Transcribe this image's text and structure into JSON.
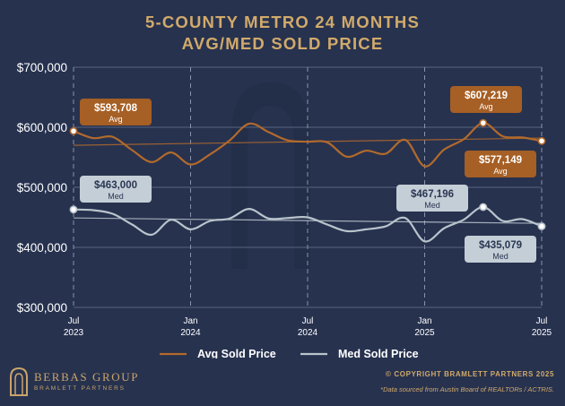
{
  "title_line1": "5-COUNTY METRO 24 MONTHS",
  "title_line2": "AVG/MED SOLD PRICE",
  "brand": {
    "name": "BERBAS GROUP",
    "sub": "BRAMLETT PARTNERS"
  },
  "copyright": "© COPYRIGHT BRAMLETT PARTNERS 2025",
  "source": "*Data sourced from Austin Board of REALTORs / ACTRIS.",
  "colors": {
    "avg": "#b26a2c",
    "med": "#b9c4cc",
    "gold": "#d1aa6a",
    "grid": "#5a6482"
  },
  "chart_data": {
    "type": "line",
    "title": "5-County Metro 24 Months Avg/Med Sold Price",
    "x_ticks": [
      {
        "index": 0,
        "line1": "Jul",
        "line2": "2023"
      },
      {
        "index": 6,
        "line1": "Jan",
        "line2": "2024"
      },
      {
        "index": 12,
        "line1": "Jul",
        "line2": "2024"
      },
      {
        "index": 18,
        "line1": "Jan",
        "line2": "2025"
      },
      {
        "index": 24,
        "line1": "Jul",
        "line2": "2025"
      }
    ],
    "y_ticks": [
      "$300,000",
      "$400,000",
      "$500,000",
      "$600,000",
      "$700,000"
    ],
    "ylim": [
      300000,
      700000
    ],
    "xlim": [
      0,
      24
    ],
    "series": [
      {
        "name": "Avg Sold Price",
        "values": [
          593708,
          582000,
          584000,
          562000,
          542000,
          558000,
          538000,
          555000,
          578000,
          606000,
          592000,
          578000,
          576000,
          575000,
          551000,
          561000,
          556000,
          579000,
          535000,
          563000,
          580000,
          607219,
          585000,
          583000,
          577149
        ],
        "trend": [
          570000,
          582000
        ]
      },
      {
        "name": "Med Sold Price",
        "values": [
          463000,
          462000,
          456000,
          438000,
          421000,
          446000,
          430000,
          444000,
          448000,
          464000,
          448000,
          449000,
          450000,
          438000,
          427000,
          430000,
          435000,
          449000,
          410000,
          432000,
          446000,
          467196,
          444000,
          447000,
          435079
        ],
        "trend": [
          449000,
          440000
        ]
      }
    ],
    "annotations": [
      {
        "series": 0,
        "index": 0,
        "value": "$593,708",
        "label": "Avg"
      },
      {
        "series": 0,
        "index": 21,
        "value": "$607,219",
        "label": "Avg"
      },
      {
        "series": 0,
        "index": 24,
        "value": "$577,149",
        "label": "Avg"
      },
      {
        "series": 1,
        "index": 0,
        "value": "$463,000",
        "label": "Med"
      },
      {
        "series": 1,
        "index": 21,
        "value": "$467,196",
        "label": "Med"
      },
      {
        "series": 1,
        "index": 24,
        "value": "$435,079",
        "label": "Med"
      }
    ],
    "legend": [
      "Avg Sold Price",
      "Med Sold Price"
    ]
  }
}
